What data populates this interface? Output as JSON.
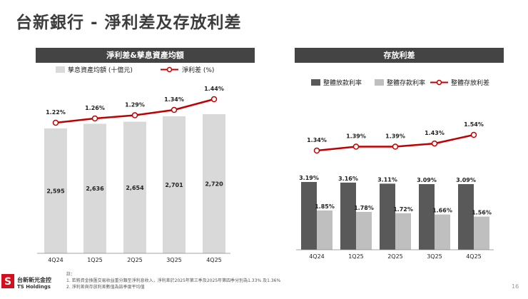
{
  "page_title": "台新銀行 - 淨利差及存放利差",
  "page_number": "16",
  "colors": {
    "header_bg": "#444444",
    "bar_light": "#d9d9d9",
    "bar_dark": "#595959",
    "bar_mid": "#bfbfbf",
    "line_red": "#c00000",
    "logo_red": "#d4101e"
  },
  "chart_data": [
    {
      "type": "bar+line",
      "title": "淨利差&孳息資產均額",
      "categories": [
        "4Q24",
        "1Q25",
        "2Q25",
        "3Q25",
        "4Q25"
      ],
      "series": [
        {
          "name": "孳息資產均額 (十億元)",
          "type": "bar",
          "values": [
            2595,
            2636,
            2654,
            2701,
            2720
          ],
          "labels": [
            "2,595",
            "2,636",
            "2,654",
            "2,701",
            "2,720"
          ]
        },
        {
          "name": "淨利差 (%)",
          "type": "line",
          "values": [
            1.22,
            1.26,
            1.29,
            1.34,
            1.44
          ],
          "labels": [
            "1.22%",
            "1.26%",
            "1.29%",
            "1.34%",
            "1.44%"
          ]
        }
      ]
    },
    {
      "type": "bar+line",
      "title": "存放利差",
      "categories": [
        "4Q24",
        "1Q25",
        "2Q25",
        "3Q25",
        "4Q25"
      ],
      "series": [
        {
          "name": "整體放款利率",
          "type": "bar",
          "values": [
            3.19,
            3.16,
            3.11,
            3.09,
            3.09
          ],
          "labels": [
            "3.19%",
            "3.16%",
            "3.11%",
            "3.09%",
            "3.09%"
          ]
        },
        {
          "name": "整體存款利率",
          "type": "bar",
          "values": [
            1.85,
            1.78,
            1.72,
            1.66,
            1.56
          ],
          "labels": [
            "1.85%",
            "1.78%",
            "1.72%",
            "1.66%",
            "1.56%"
          ]
        },
        {
          "name": "整體存放利差",
          "type": "line",
          "values": [
            1.34,
            1.39,
            1.39,
            1.43,
            1.54
          ],
          "labels": [
            "1.34%",
            "1.39%",
            "1.39%",
            "1.43%",
            "1.54%"
          ]
        }
      ]
    }
  ],
  "notes": {
    "label": "註：",
    "items": [
      "1. 若將資金換匯交易收益重分類至淨利息收入，淨利差於2025年第三季及2025年第四季分別為1.33% 及1.36%",
      "2. 淨利差與存放利差數值為該季度平均值"
    ]
  },
  "logo": {
    "name_cn": "台新新光金控",
    "name_en": "TS Holdings"
  }
}
